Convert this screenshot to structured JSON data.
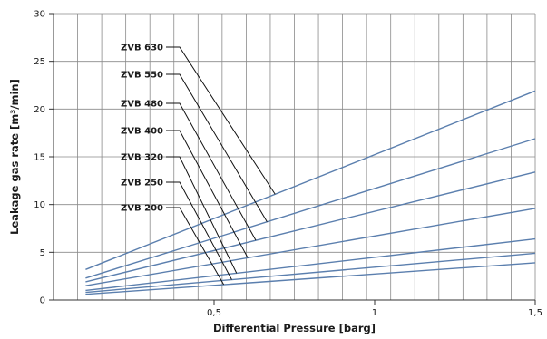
{
  "chart_data": {
    "type": "line",
    "xlabel": "Differential Pressure [barg]",
    "ylabel": "Leakage gas rate [m³/min]",
    "xlim": [
      0,
      1.5
    ],
    "ylim": [
      0,
      30
    ],
    "xticks": [
      {
        "value": 0.5,
        "label": "0,5"
      },
      {
        "value": 1,
        "label": "1"
      },
      {
        "value": 1.5,
        "label": "1,5"
      }
    ],
    "yticks": [
      0,
      5,
      10,
      15,
      20,
      25,
      30
    ],
    "grid": true,
    "line_color": "#5b7fae",
    "series": [
      {
        "name": "ZVB 630",
        "x": [
          0.1,
          1.5
        ],
        "y": [
          3.2,
          21.9
        ]
      },
      {
        "name": "ZVB 550",
        "x": [
          0.1,
          1.5
        ],
        "y": [
          2.3,
          16.9
        ]
      },
      {
        "name": "ZVB 480",
        "x": [
          0.1,
          1.5
        ],
        "y": [
          1.9,
          13.4
        ]
      },
      {
        "name": "ZVB 400",
        "x": [
          0.1,
          1.5
        ],
        "y": [
          1.5,
          9.6
        ]
      },
      {
        "name": "ZVB 320",
        "x": [
          0.1,
          1.5
        ],
        "y": [
          1.0,
          6.4
        ]
      },
      {
        "name": "ZVB 250",
        "x": [
          0.1,
          1.5
        ],
        "y": [
          0.8,
          4.9
        ]
      },
      {
        "name": "ZVB 200",
        "x": [
          0.1,
          1.5
        ],
        "y": [
          0.6,
          3.9
        ]
      }
    ],
    "label_targets": [
      {
        "series": "ZVB 630",
        "x": 0.69
      },
      {
        "series": "ZVB 550",
        "x": 0.665
      },
      {
        "series": "ZVB 480",
        "x": 0.63
      },
      {
        "series": "ZVB 400",
        "x": 0.605
      },
      {
        "series": "ZVB 320",
        "x": 0.57
      },
      {
        "series": "ZVB 250",
        "x": 0.555
      },
      {
        "series": "ZVB 200",
        "x": 0.53
      }
    ]
  }
}
